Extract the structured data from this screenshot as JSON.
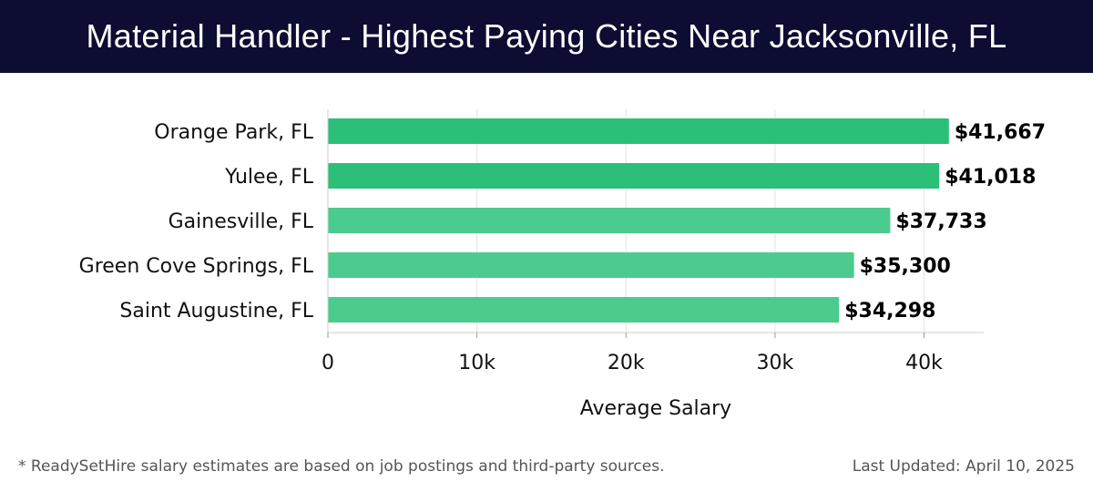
{
  "header": {
    "title": "Material Handler - Highest Paying Cities Near Jacksonville, FL"
  },
  "footer": {
    "note": "* ReadySetHire salary estimates are based on job postings and third-party sources.",
    "updated": "Last Updated: April 10, 2025"
  },
  "colors": {
    "header_bg": "#0d0c33",
    "bar_top": "#2bbf78",
    "bar": "#4ccb8e",
    "label_value": "#000000"
  },
  "chart_data": {
    "type": "bar",
    "orientation": "horizontal",
    "title": "Material Handler - Highest Paying Cities Near Jacksonville, FL",
    "categories": [
      "Orange Park, FL",
      "Yulee, FL",
      "Gainesville, FL",
      "Green Cove Springs, FL",
      "Saint Augustine, FL"
    ],
    "values": [
      41667,
      41018,
      37733,
      35300,
      34298
    ],
    "value_labels": [
      "$41,667",
      "$41,018",
      "$37,733",
      "$35,300",
      "$34,298"
    ],
    "xlabel": "Average Salary",
    "ylabel": "",
    "xlim": [
      0,
      44000
    ],
    "xticks": [
      0,
      10000,
      20000,
      30000,
      40000
    ],
    "xtick_labels": [
      "0",
      "10k",
      "20k",
      "30k",
      "40k"
    ],
    "grid": true
  }
}
